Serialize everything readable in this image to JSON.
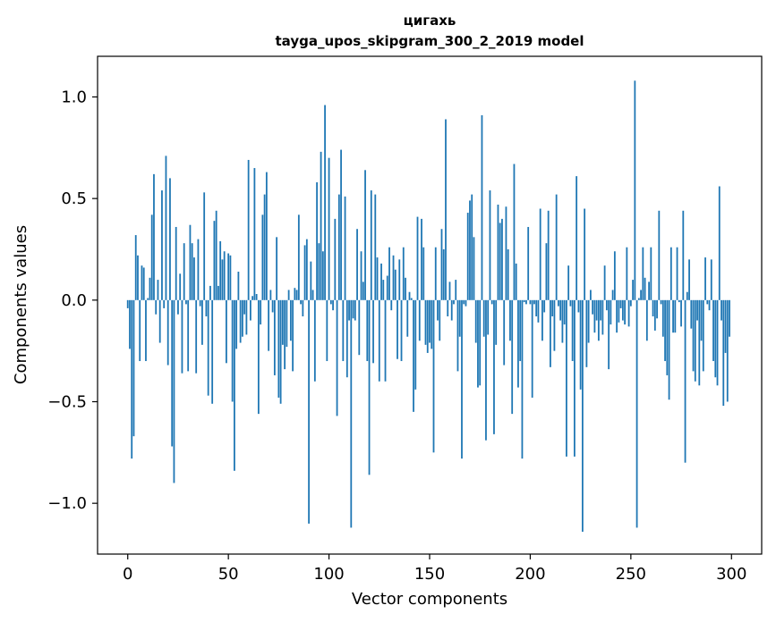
{
  "chart_data": {
    "type": "bar",
    "title": "цигахь",
    "subtitle": "tayga_upos_skipgram_300_2_2019 model",
    "xlabel": "Vector components",
    "ylabel": "Components values",
    "xlim": [
      -15,
      315
    ],
    "ylim": [
      -1.25,
      1.2
    ],
    "grid": false,
    "xticks": [
      0,
      50,
      100,
      150,
      200,
      250,
      300
    ],
    "yticks": [
      -1.0,
      -0.5,
      0.0,
      0.5,
      1.0
    ],
    "xtick_labels": [
      "0",
      "50",
      "100",
      "150",
      "200",
      "250",
      "300"
    ],
    "ytick_labels": [
      "−1.0",
      "−0.5",
      "0.0",
      "0.5",
      "1.0"
    ],
    "x": [
      0,
      1,
      2,
      3,
      4,
      5,
      6,
      7,
      8,
      9,
      10,
      11,
      12,
      13,
      14,
      15,
      16,
      17,
      18,
      19,
      20,
      21,
      22,
      23,
      24,
      25,
      26,
      27,
      28,
      29,
      30,
      31,
      32,
      33,
      34,
      35,
      36,
      37,
      38,
      39,
      40,
      41,
      42,
      43,
      44,
      45,
      46,
      47,
      48,
      49,
      50,
      51,
      52,
      53,
      54,
      55,
      56,
      57,
      58,
      59,
      60,
      61,
      62,
      63,
      64,
      65,
      66,
      67,
      68,
      69,
      70,
      71,
      72,
      73,
      74,
      75,
      76,
      77,
      78,
      79,
      80,
      81,
      82,
      83,
      84,
      85,
      86,
      87,
      88,
      89,
      90,
      91,
      92,
      93,
      94,
      95,
      96,
      97,
      98,
      99,
      100,
      101,
      102,
      103,
      104,
      105,
      106,
      107,
      108,
      109,
      110,
      111,
      112,
      113,
      114,
      115,
      116,
      117,
      118,
      119,
      120,
      121,
      122,
      123,
      124,
      125,
      126,
      127,
      128,
      129,
      130,
      131,
      132,
      133,
      134,
      135,
      136,
      137,
      138,
      139,
      140,
      141,
      142,
      143,
      144,
      145,
      146,
      147,
      148,
      149,
      150,
      151,
      152,
      153,
      154,
      155,
      156,
      157,
      158,
      159,
      160,
      161,
      162,
      163,
      164,
      165,
      166,
      167,
      168,
      169,
      170,
      171,
      172,
      173,
      174,
      175,
      176,
      177,
      178,
      179,
      180,
      181,
      182,
      183,
      184,
      185,
      186,
      187,
      188,
      189,
      190,
      191,
      192,
      193,
      194,
      195,
      196,
      197,
      198,
      199,
      200,
      201,
      202,
      203,
      204,
      205,
      206,
      207,
      208,
      209,
      210,
      211,
      212,
      213,
      214,
      215,
      216,
      217,
      218,
      219,
      220,
      221,
      222,
      223,
      224,
      225,
      226,
      227,
      228,
      229,
      230,
      231,
      232,
      233,
      234,
      235,
      236,
      237,
      238,
      239,
      240,
      241,
      242,
      243,
      244,
      245,
      246,
      247,
      248,
      249,
      250,
      251,
      252,
      253,
      254,
      255,
      256,
      257,
      258,
      259,
      260,
      261,
      262,
      263,
      264,
      265,
      266,
      267,
      268,
      269,
      270,
      271,
      272,
      273,
      274,
      275,
      276,
      277,
      278,
      279,
      280,
      281,
      282,
      283,
      284,
      285,
      286,
      287,
      288,
      289,
      290,
      291,
      292,
      293,
      294,
      295,
      296,
      297,
      298,
      299
    ],
    "values": [
      -0.04,
      -0.24,
      -0.78,
      -0.67,
      0.32,
      0.22,
      -0.3,
      0.17,
      0.16,
      -0.3,
      0.01,
      0.11,
      0.42,
      0.62,
      -0.07,
      0.1,
      -0.21,
      0.54,
      -0.04,
      0.71,
      -0.32,
      0.6,
      -0.72,
      -0.9,
      0.36,
      -0.07,
      0.13,
      -0.36,
      0.28,
      -0.02,
      -0.35,
      0.37,
      0.28,
      0.21,
      -0.36,
      0.3,
      -0.03,
      -0.22,
      0.53,
      -0.08,
      -0.47,
      0.07,
      -0.51,
      0.39,
      0.44,
      0.07,
      0.29,
      0.2,
      0.24,
      -0.31,
      0.23,
      0.22,
      -0.5,
      -0.84,
      -0.24,
      0.14,
      -0.21,
      -0.18,
      -0.07,
      -0.17,
      0.69,
      -0.1,
      0.02,
      0.65,
      0.03,
      -0.56,
      -0.12,
      0.42,
      0.52,
      0.63,
      -0.25,
      0.05,
      -0.06,
      -0.37,
      0.31,
      -0.48,
      -0.51,
      -0.22,
      -0.34,
      -0.23,
      0.05,
      -0.2,
      -0.35,
      0.06,
      0.05,
      0.42,
      -0.02,
      -0.08,
      0.27,
      0.3,
      -1.1,
      0.19,
      0.05,
      -0.4,
      0.58,
      0.28,
      0.73,
      0.24,
      0.96,
      -0.3,
      0.7,
      -0.02,
      -0.05,
      0.4,
      -0.57,
      0.52,
      0.74,
      -0.3,
      0.51,
      -0.38,
      -0.1,
      -1.12,
      -0.09,
      -0.1,
      0.35,
      -0.27,
      0.24,
      0.09,
      0.64,
      -0.3,
      -0.86,
      0.54,
      -0.31,
      0.52,
      0.21,
      -0.4,
      0.18,
      0.1,
      -0.4,
      0.12,
      0.26,
      -0.05,
      0.22,
      0.15,
      -0.29,
      0.2,
      -0.3,
      0.26,
      0.11,
      -0.18,
      0.04,
      0.01,
      -0.55,
      -0.44,
      0.41,
      -0.2,
      0.4,
      0.26,
      -0.22,
      -0.26,
      -0.21,
      -0.24,
      -0.75,
      0.26,
      -0.1,
      -0.2,
      0.35,
      0.25,
      0.89,
      -0.08,
      0.09,
      -0.1,
      -0.02,
      0.1,
      -0.35,
      -0.18,
      -0.78,
      -0.02,
      -0.03,
      0.43,
      0.49,
      0.52,
      0.31,
      -0.21,
      -0.43,
      -0.42,
      0.91,
      -0.18,
      -0.69,
      -0.17,
      0.54,
      -0.02,
      -0.66,
      -0.22,
      0.47,
      0.38,
      0.4,
      -0.32,
      0.46,
      0.25,
      -0.2,
      -0.56,
      0.67,
      0.18,
      -0.43,
      -0.3,
      -0.78,
      -0.01,
      -0.02,
      0.36,
      -0.02,
      -0.48,
      -0.02,
      -0.08,
      -0.11,
      0.45,
      -0.2,
      -0.06,
      0.28,
      0.44,
      -0.33,
      -0.08,
      -0.25,
      0.52,
      -0.03,
      -0.1,
      -0.21,
      -0.12,
      -0.77,
      0.17,
      -0.03,
      -0.3,
      -0.77,
      0.61,
      -0.06,
      -0.44,
      -1.14,
      0.45,
      -0.33,
      -0.21,
      0.05,
      -0.07,
      -0.16,
      -0.1,
      -0.2,
      -0.1,
      -0.17,
      0.17,
      -0.05,
      -0.34,
      -0.12,
      0.05,
      0.24,
      -0.16,
      -0.11,
      -0.04,
      -0.1,
      -0.12,
      0.26,
      -0.13,
      -0.03,
      0.1,
      1.08,
      -1.12,
      0.01,
      0.05,
      0.26,
      0.11,
      -0.2,
      0.09,
      0.26,
      -0.08,
      -0.15,
      -0.09,
      0.44,
      -0.02,
      -0.18,
      -0.3,
      -0.37,
      -0.49,
      0.26,
      -0.16,
      -0.16,
      0.26,
      -0.01,
      -0.13,
      0.44,
      -0.8,
      0.04,
      0.2,
      -0.14,
      -0.35,
      -0.4,
      -0.1,
      -0.42,
      -0.2,
      -0.35,
      0.21,
      -0.02,
      -0.05,
      0.2,
      -0.3,
      -0.38,
      -0.42,
      0.56,
      -0.1,
      -0.52,
      -0.26,
      -0.5,
      -0.18
    ]
  }
}
